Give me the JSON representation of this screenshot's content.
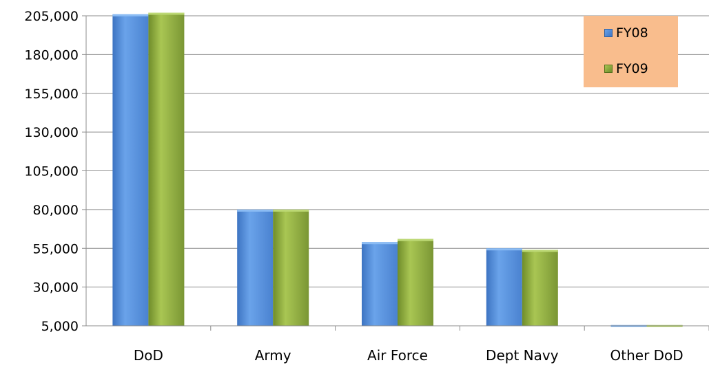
{
  "chart_data": {
    "type": "bar",
    "categories": [
      "DoD",
      "Army",
      "Air Force",
      "Dept Navy",
      "Other DoD"
    ],
    "series": [
      {
        "name": "FY08",
        "color": "#4f8ad6",
        "values": [
          206000,
          80000,
          59000,
          55000,
          5500
        ]
      },
      {
        "name": "FY09",
        "color": "#87a63c",
        "values": [
          207000,
          80000,
          61000,
          54000,
          5500
        ]
      }
    ],
    "ylim": [
      5000,
      205000
    ],
    "yticks": [
      "5,000",
      "30,000",
      "55,000",
      "80,000",
      "105,000",
      "130,000",
      "155,000",
      "180,000",
      "205,000"
    ],
    "ytick_values": [
      5000,
      30000,
      55000,
      80000,
      105000,
      130000,
      155000,
      180000,
      205000
    ],
    "grid": true,
    "legend_position": "top-right"
  }
}
